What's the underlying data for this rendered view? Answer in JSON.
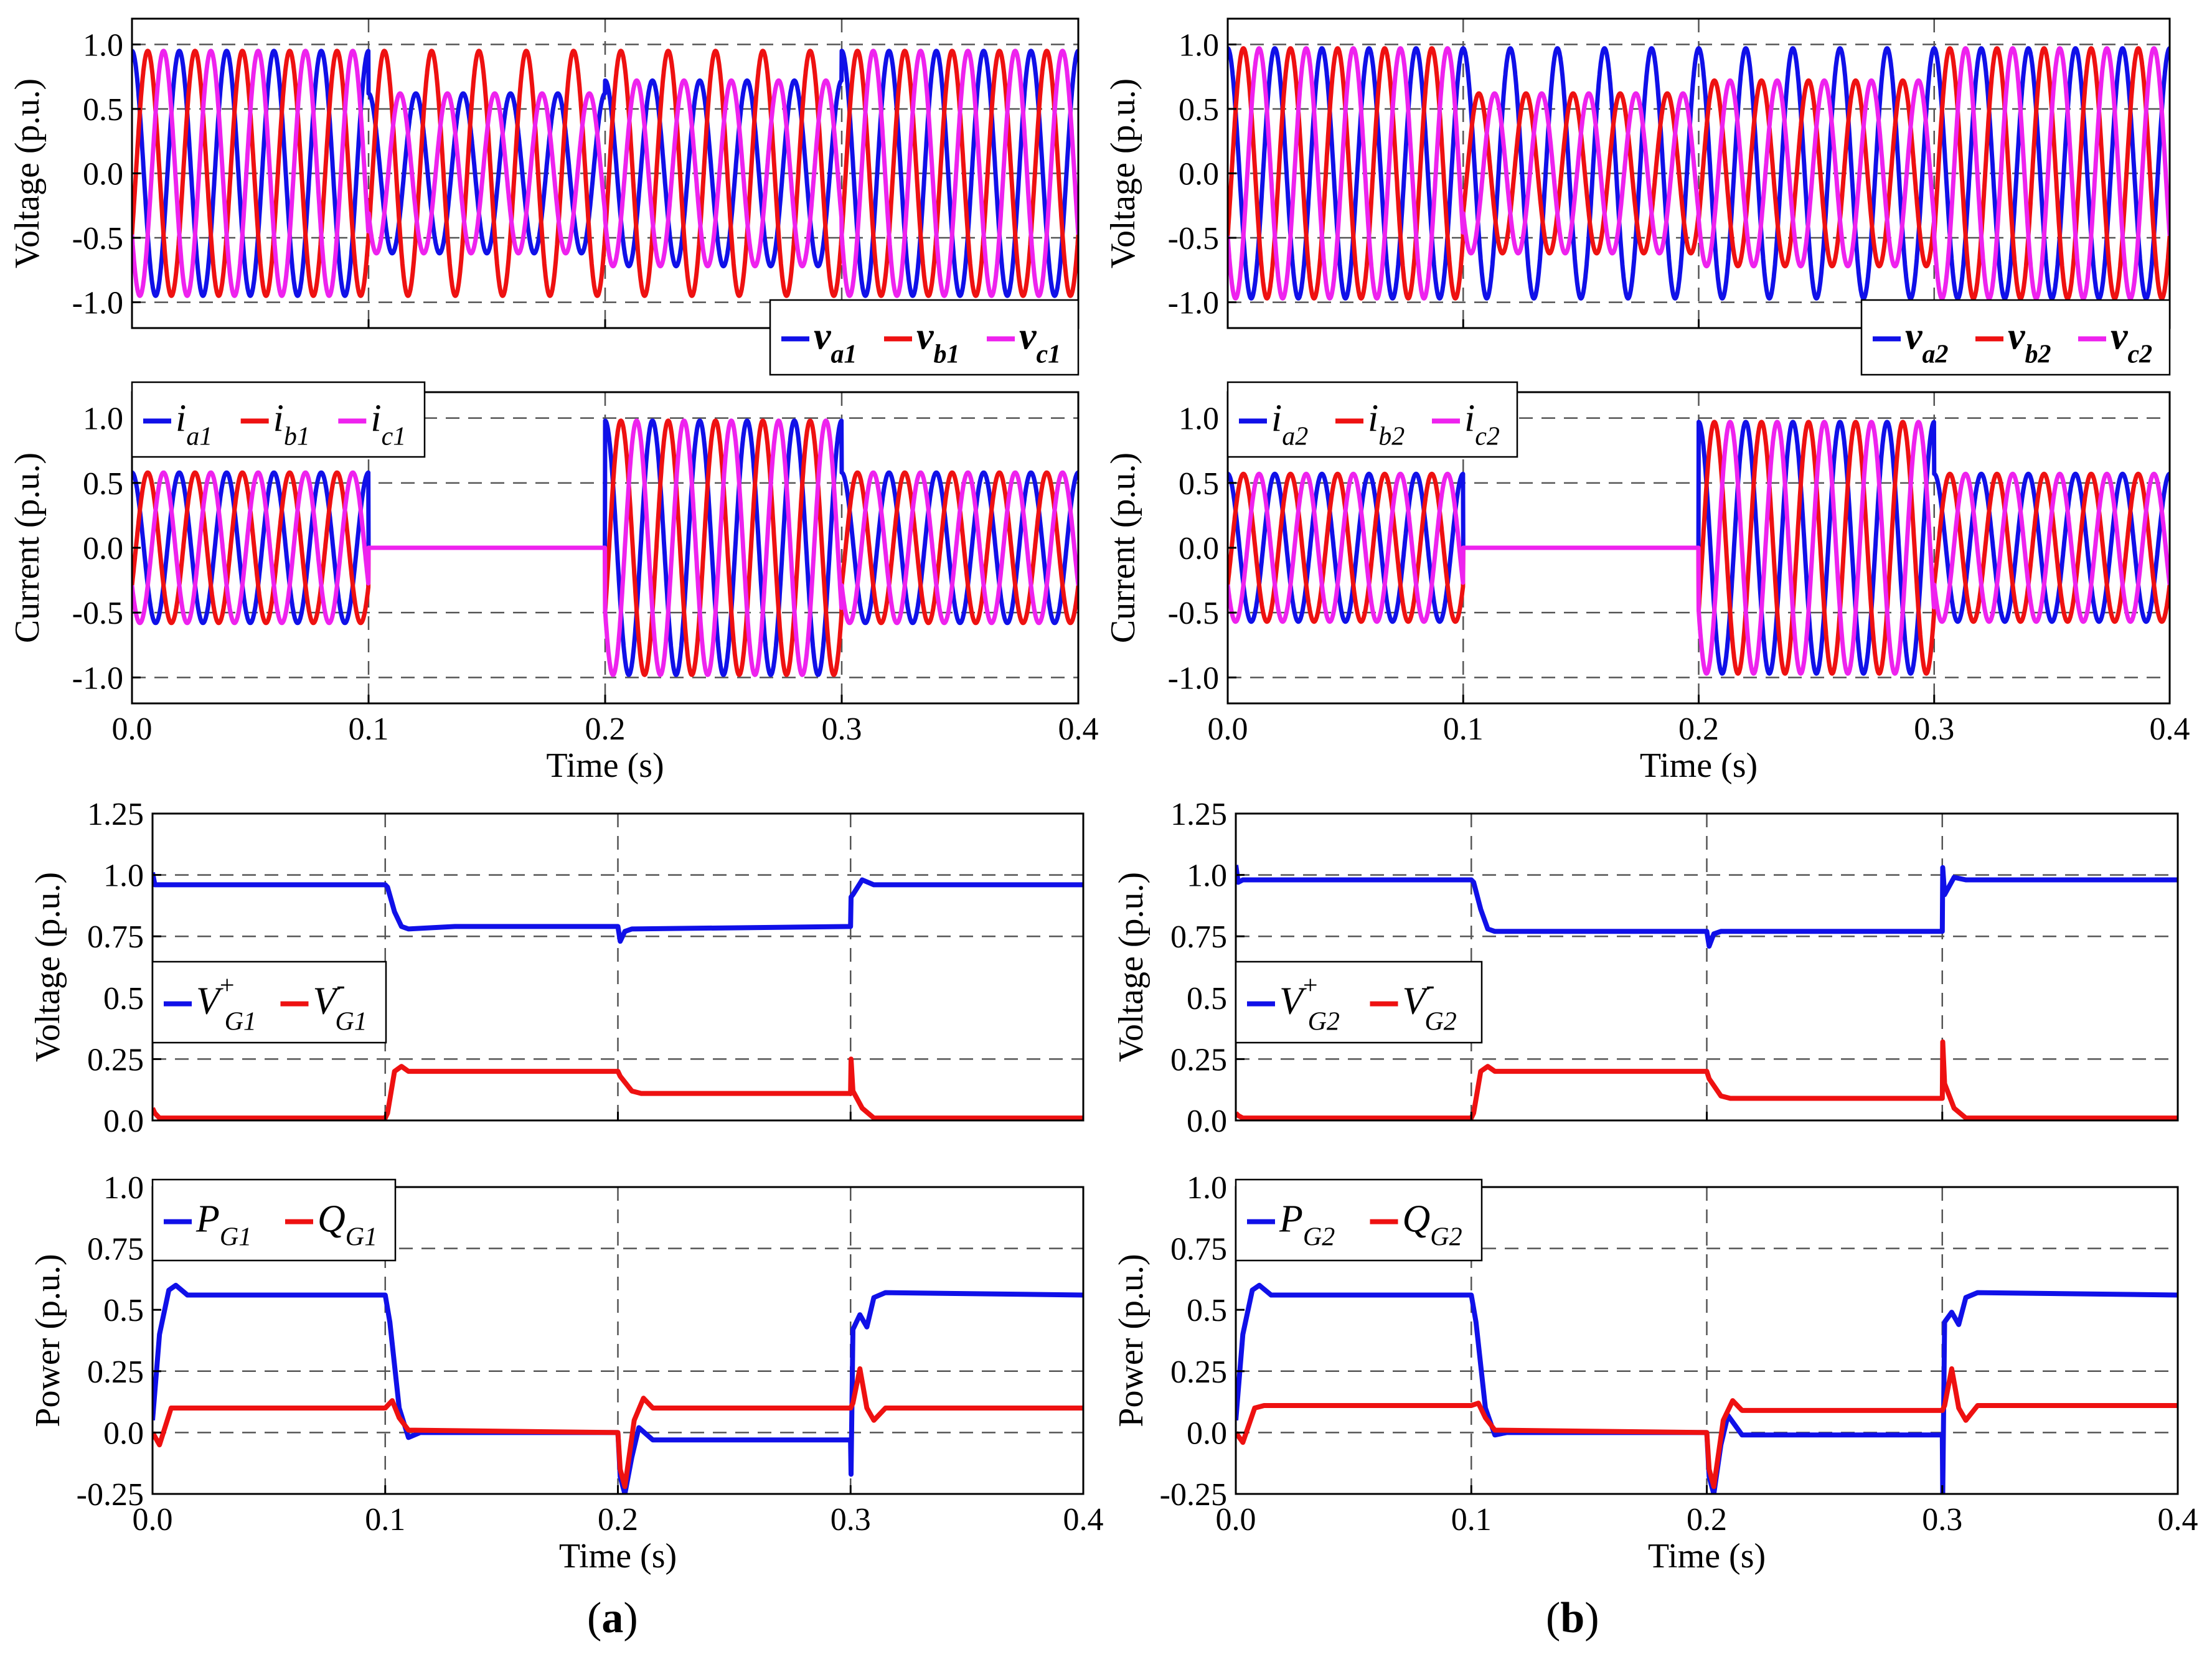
{
  "colors": {
    "blue": "#1010e8",
    "red": "#ee1111",
    "magenta": "#ee22ee",
    "grid": "#555555",
    "axis": "#000000"
  },
  "captions": {
    "a": "a",
    "b": "b"
  },
  "time_axis": {
    "label": "Time (s)",
    "ticks": [
      "0.0",
      "0.1",
      "0.2",
      "0.3",
      "0.4"
    ],
    "range": [
      0,
      0.4
    ]
  },
  "chart_data": [
    {
      "panel": "a-voltage",
      "type": "line",
      "title": "",
      "xlabel": "",
      "ylabel": "Voltage (p.u.)",
      "ylim": [
        -1.2,
        1.2
      ],
      "yticks": [
        "1.0",
        "0.5",
        "0.0",
        "-0.5",
        "-1.0"
      ],
      "ytick_values": [
        1.0,
        0.5,
        0.0,
        -0.5,
        -1.0
      ],
      "grid_y": [
        1.0,
        0.5,
        0.0,
        -0.5,
        -1.0
      ],
      "legend_position": "bottom-right",
      "frequency_hz": 50,
      "segments": [
        {
          "t": [
            0,
            0.1
          ],
          "amp": [
            0.95,
            0.95,
            0.95
          ]
        },
        {
          "t": [
            0.1,
            0.2
          ],
          "amp": [
            0.62,
            0.95,
            0.62
          ]
        },
        {
          "t": [
            0.2,
            0.3
          ],
          "amp": [
            0.72,
            0.95,
            0.72
          ]
        },
        {
          "t": [
            0.3,
            0.4
          ],
          "amp": [
            0.95,
            0.95,
            0.95
          ]
        }
      ],
      "series": [
        {
          "name": "v",
          "sub": "a1",
          "color": "blue"
        },
        {
          "name": "v",
          "sub": "b1",
          "color": "red"
        },
        {
          "name": "v",
          "sub": "c1",
          "color": "magenta"
        }
      ]
    },
    {
      "panel": "a-current",
      "type": "line",
      "title": "",
      "xlabel": "Time (s)",
      "ylabel": "Current (p.u.)",
      "ylim": [
        -1.2,
        1.2
      ],
      "yticks": [
        "1.0",
        "0.5",
        "0.0",
        "-0.5",
        "-1.0"
      ],
      "ytick_values": [
        1.0,
        0.5,
        0.0,
        -0.5,
        -1.0
      ],
      "grid_y": [
        1.0,
        0.5,
        -0.5,
        -1.0
      ],
      "legend_position": "top-left",
      "frequency_hz": 50,
      "segments": [
        {
          "t": [
            0,
            0.1
          ],
          "amp": [
            0.58,
            0.58,
            0.58
          ]
        },
        {
          "t": [
            0.1,
            0.2
          ],
          "amp": [
            0.0,
            0.0,
            0.0
          ]
        },
        {
          "t": [
            0.2,
            0.3
          ],
          "amp": [
            0.98,
            0.98,
            0.98
          ]
        },
        {
          "t": [
            0.3,
            0.4
          ],
          "amp": [
            0.58,
            0.58,
            0.58
          ]
        }
      ],
      "series": [
        {
          "name": "i",
          "sub": "a1",
          "color": "blue"
        },
        {
          "name": "i",
          "sub": "b1",
          "color": "red"
        },
        {
          "name": "i",
          "sub": "c1",
          "color": "magenta"
        }
      ]
    },
    {
      "panel": "a-seq-voltage",
      "type": "line",
      "title": "",
      "xlabel": "",
      "ylabel": "Voltage (p.u.)",
      "ylim": [
        0,
        1.25
      ],
      "yticks": [
        "1.25",
        "1.0",
        "0.75",
        "0.5",
        "0.25",
        "0.0"
      ],
      "ytick_values": [
        1.25,
        1.0,
        0.75,
        0.5,
        0.25,
        0.0
      ],
      "grid_y": [
        1.0,
        0.75,
        0.25
      ],
      "legend_position": "middle-left",
      "series": [
        {
          "name": "V",
          "sup": "+",
          "sub": "G1",
          "color": "blue",
          "x": [
            0,
            0.001,
            0.002,
            0.1,
            0.101,
            0.104,
            0.107,
            0.11,
            0.13,
            0.2,
            0.201,
            0.203,
            0.206,
            0.3,
            0.3002,
            0.301,
            0.305,
            0.31,
            0.4
          ],
          "y": [
            1.01,
            0.96,
            0.96,
            0.96,
            0.95,
            0.85,
            0.79,
            0.78,
            0.79,
            0.79,
            0.73,
            0.77,
            0.78,
            0.79,
            0.91,
            0.92,
            0.98,
            0.96,
            0.96
          ]
        },
        {
          "name": "V",
          "sup": "-",
          "sub": "G1",
          "color": "red",
          "x": [
            0,
            0.001,
            0.003,
            0.1,
            0.101,
            0.104,
            0.107,
            0.11,
            0.2,
            0.201,
            0.206,
            0.21,
            0.3,
            0.3002,
            0.301,
            0.305,
            0.31,
            0.4
          ],
          "y": [
            0.05,
            0.03,
            0.01,
            0.01,
            0.03,
            0.2,
            0.22,
            0.2,
            0.2,
            0.18,
            0.12,
            0.11,
            0.11,
            0.25,
            0.12,
            0.05,
            0.01,
            0.01
          ]
        }
      ]
    },
    {
      "panel": "a-power",
      "type": "line",
      "title": "",
      "xlabel": "Time (s)",
      "ylabel": "Power (p.u.)",
      "ylim": [
        -0.25,
        1.0
      ],
      "yticks": [
        "1.0",
        "0.75",
        "0.5",
        "0.25",
        "0.0",
        "-0.25"
      ],
      "ytick_values": [
        1.0,
        0.75,
        0.5,
        0.25,
        0.0,
        -0.25
      ],
      "grid_y": [
        0.75,
        0.25,
        0.0
      ],
      "legend_position": "top-left",
      "series": [
        {
          "name": "P",
          "sub": "G1",
          "color": "blue",
          "x": [
            0,
            0.003,
            0.007,
            0.01,
            0.015,
            0.1,
            0.102,
            0.106,
            0.11,
            0.115,
            0.2,
            0.201,
            0.203,
            0.206,
            0.209,
            0.215,
            0.3,
            0.3002,
            0.301,
            0.304,
            0.307,
            0.31,
            0.315,
            0.4
          ],
          "y": [
            0.05,
            0.4,
            0.58,
            0.6,
            0.56,
            0.56,
            0.45,
            0.1,
            -0.02,
            0.0,
            0.0,
            -0.18,
            -0.25,
            -0.1,
            0.02,
            -0.03,
            -0.03,
            -0.17,
            0.42,
            0.48,
            0.43,
            0.55,
            0.57,
            0.56
          ]
        },
        {
          "name": "Q",
          "sub": "G1",
          "color": "red",
          "x": [
            0,
            0.003,
            0.008,
            0.012,
            0.1,
            0.103,
            0.106,
            0.11,
            0.2,
            0.201,
            0.203,
            0.207,
            0.211,
            0.215,
            0.3,
            0.301,
            0.304,
            0.307,
            0.31,
            0.315,
            0.4
          ],
          "y": [
            0.0,
            -0.05,
            0.1,
            0.1,
            0.1,
            0.13,
            0.06,
            0.01,
            0.0,
            -0.15,
            -0.22,
            0.05,
            0.14,
            0.1,
            0.1,
            0.12,
            0.26,
            0.1,
            0.05,
            0.1,
            0.1
          ]
        }
      ]
    },
    {
      "panel": "b-voltage",
      "type": "line",
      "title": "",
      "xlabel": "",
      "ylabel": "Voltage (p.u.)",
      "ylim": [
        -1.2,
        1.2
      ],
      "yticks": [
        "1.0",
        "0.5",
        "0.0",
        "-0.5",
        "-1.0"
      ],
      "ytick_values": [
        1.0,
        0.5,
        0.0,
        -0.5,
        -1.0
      ],
      "grid_y": [
        1.0,
        0.5,
        0.0,
        -0.5,
        -1.0
      ],
      "legend_position": "bottom-right",
      "frequency_hz": 50,
      "segments": [
        {
          "t": [
            0,
            0.1
          ],
          "amp": [
            0.97,
            0.97,
            0.97
          ]
        },
        {
          "t": [
            0.1,
            0.2
          ],
          "amp": [
            0.97,
            0.62,
            0.62
          ]
        },
        {
          "t": [
            0.2,
            0.3
          ],
          "amp": [
            0.97,
            0.72,
            0.72
          ]
        },
        {
          "t": [
            0.3,
            0.4
          ],
          "amp": [
            0.97,
            0.97,
            0.97
          ]
        }
      ],
      "series": [
        {
          "name": "v",
          "sub": "a2",
          "color": "blue"
        },
        {
          "name": "v",
          "sub": "b2",
          "color": "red"
        },
        {
          "name": "v",
          "sub": "c2",
          "color": "magenta"
        }
      ]
    },
    {
      "panel": "b-current",
      "type": "line",
      "title": "",
      "xlabel": "Time (s)",
      "ylabel": "Current (p.u.)",
      "ylim": [
        -1.2,
        1.2
      ],
      "yticks": [
        "1.0",
        "0.5",
        "0.0",
        "-0.5",
        "-1.0"
      ],
      "ytick_values": [
        1.0,
        0.5,
        0.0,
        -0.5,
        -1.0
      ],
      "grid_y": [
        1.0,
        0.5,
        -0.5,
        -1.0
      ],
      "legend_position": "top-left",
      "frequency_hz": 50,
      "segments": [
        {
          "t": [
            0,
            0.1
          ],
          "amp": [
            0.57,
            0.57,
            0.57
          ]
        },
        {
          "t": [
            0.1,
            0.2
          ],
          "amp": [
            0.0,
            0.0,
            0.0
          ]
        },
        {
          "t": [
            0.2,
            0.3
          ],
          "amp": [
            0.97,
            0.97,
            0.97
          ]
        },
        {
          "t": [
            0.3,
            0.4
          ],
          "amp": [
            0.57,
            0.57,
            0.57
          ]
        }
      ],
      "series": [
        {
          "name": "i",
          "sub": "a2",
          "color": "blue"
        },
        {
          "name": "i",
          "sub": "b2",
          "color": "red"
        },
        {
          "name": "i",
          "sub": "c2",
          "color": "magenta"
        }
      ]
    },
    {
      "panel": "b-seq-voltage",
      "type": "line",
      "title": "",
      "xlabel": "",
      "ylabel": "Voltage (p.u.)",
      "ylim": [
        0,
        1.25
      ],
      "yticks": [
        "1.25",
        "1.0",
        "0.75",
        "0.5",
        "0.25",
        "0.0"
      ],
      "ytick_values": [
        1.25,
        1.0,
        0.75,
        0.5,
        0.25,
        0.0
      ],
      "grid_y": [
        1.0,
        0.75,
        0.25
      ],
      "legend_position": "middle-left",
      "series": [
        {
          "name": "V",
          "sup": "+",
          "sub": "G2",
          "color": "blue",
          "x": [
            0,
            0.001,
            0.003,
            0.1,
            0.101,
            0.104,
            0.107,
            0.11,
            0.13,
            0.2,
            0.201,
            0.203,
            0.206,
            0.3,
            0.3002,
            0.301,
            0.305,
            0.31,
            0.4
          ],
          "y": [
            1.04,
            0.97,
            0.98,
            0.98,
            0.97,
            0.86,
            0.78,
            0.77,
            0.77,
            0.77,
            0.71,
            0.76,
            0.77,
            0.77,
            1.03,
            0.92,
            0.99,
            0.98,
            0.98
          ]
        },
        {
          "name": "V",
          "sup": "-",
          "sub": "G2",
          "color": "red",
          "x": [
            0,
            0.001,
            0.003,
            0.1,
            0.101,
            0.104,
            0.107,
            0.11,
            0.2,
            0.201,
            0.206,
            0.21,
            0.3,
            0.3002,
            0.301,
            0.305,
            0.31,
            0.4
          ],
          "y": [
            0.03,
            0.02,
            0.01,
            0.01,
            0.03,
            0.2,
            0.22,
            0.2,
            0.2,
            0.17,
            0.1,
            0.09,
            0.09,
            0.32,
            0.15,
            0.05,
            0.01,
            0.01
          ]
        }
      ]
    },
    {
      "panel": "b-power",
      "type": "line",
      "title": "",
      "xlabel": "Time (s)",
      "ylabel": "Power (p.u.)",
      "ylim": [
        -0.25,
        1.0
      ],
      "yticks": [
        "1.0",
        "0.75",
        "0.5",
        "0.25",
        "0.0",
        "-0.25"
      ],
      "ytick_values": [
        1.0,
        0.75,
        0.5,
        0.25,
        0.0,
        -0.25
      ],
      "grid_y": [
        0.75,
        0.25,
        0.0
      ],
      "legend_position": "top-left",
      "series": [
        {
          "name": "P",
          "sub": "G2",
          "color": "blue",
          "x": [
            0,
            0.003,
            0.007,
            0.01,
            0.015,
            0.1,
            0.102,
            0.106,
            0.11,
            0.115,
            0.2,
            0.201,
            0.203,
            0.206,
            0.209,
            0.215,
            0.3,
            0.3002,
            0.301,
            0.304,
            0.307,
            0.31,
            0.315,
            0.4
          ],
          "y": [
            0.05,
            0.4,
            0.58,
            0.6,
            0.56,
            0.56,
            0.45,
            0.1,
            -0.01,
            0.0,
            0.0,
            -0.18,
            -0.25,
            -0.05,
            0.07,
            -0.01,
            -0.01,
            -0.25,
            0.45,
            0.49,
            0.44,
            0.55,
            0.57,
            0.56
          ]
        },
        {
          "name": "Q",
          "sub": "G2",
          "color": "red",
          "x": [
            0,
            0.003,
            0.008,
            0.012,
            0.1,
            0.103,
            0.106,
            0.11,
            0.2,
            0.201,
            0.203,
            0.207,
            0.211,
            0.215,
            0.3,
            0.301,
            0.304,
            0.307,
            0.31,
            0.315,
            0.4
          ],
          "y": [
            0.0,
            -0.04,
            0.1,
            0.11,
            0.11,
            0.12,
            0.06,
            0.01,
            0.0,
            -0.15,
            -0.22,
            0.05,
            0.13,
            0.09,
            0.09,
            0.11,
            0.26,
            0.1,
            0.05,
            0.11,
            0.11
          ]
        }
      ]
    }
  ]
}
